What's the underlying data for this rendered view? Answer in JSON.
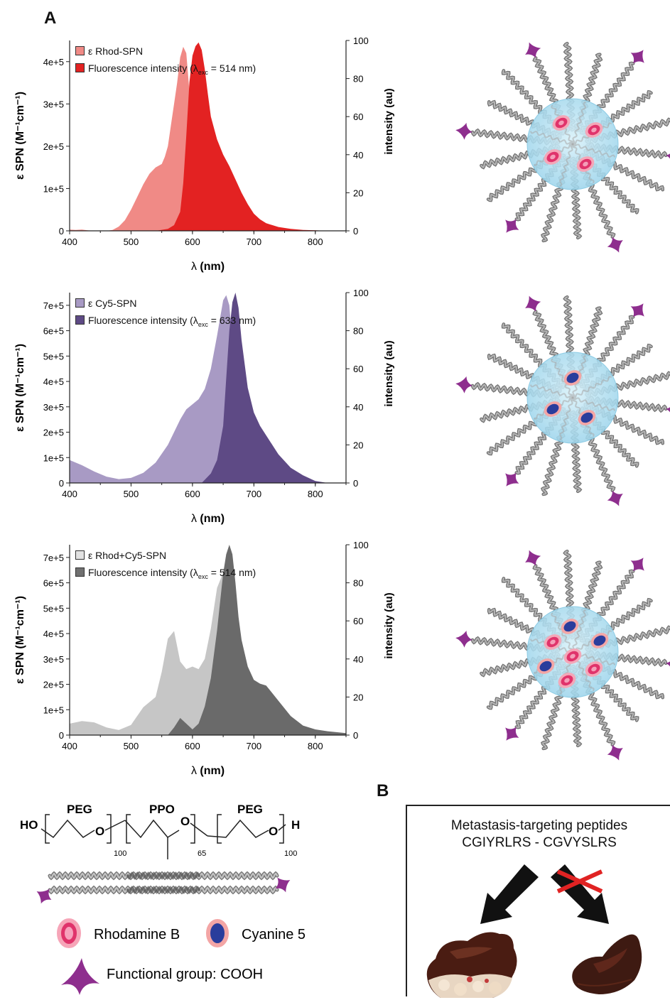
{
  "figure": {
    "panel_a_label": "A",
    "panel_b_label": "B"
  },
  "chart_data": [
    {
      "type": "area",
      "x_axis": {
        "label_symbol": "λ",
        "label_unit": "(nm)",
        "ticks": [
          "400",
          "500",
          "600",
          "700",
          "800"
        ],
        "range": [
          400,
          850
        ]
      },
      "y_left": {
        "label": "ε SPN (M⁻¹cm⁻¹)",
        "ticks": [
          "0",
          "1e+5",
          "2e+5",
          "3e+5",
          "4e+5"
        ],
        "range": [
          0,
          450000
        ]
      },
      "y_right": {
        "label": "intensity (au)",
        "ticks": [
          "0",
          "20",
          "40",
          "60",
          "80",
          "100"
        ],
        "range": [
          0,
          100
        ]
      },
      "legend": [
        {
          "text": "ε Rhod-SPN",
          "color": "#f08a86"
        },
        {
          "text": "Fluorescence intensity (λ",
          "sub": "exc",
          "tail": " = 514 nm)",
          "color": "#e32222"
        }
      ],
      "series": [
        {
          "name": "ε Rhod-SPN",
          "axis": "left",
          "color": "#f08a86",
          "x": [
            400,
            410,
            420,
            430,
            440,
            450,
            460,
            470,
            480,
            490,
            500,
            510,
            520,
            530,
            540,
            550,
            555,
            560,
            565,
            570,
            575,
            580,
            585,
            590,
            595,
            600,
            605,
            610,
            620,
            630
          ],
          "y": [
            3000,
            2000,
            3000,
            1000,
            0,
            0,
            0,
            2000,
            10000,
            25000,
            50000,
            80000,
            110000,
            135000,
            150000,
            158000,
            175000,
            200000,
            250000,
            300000,
            350000,
            410000,
            435000,
            420000,
            330000,
            200000,
            90000,
            30000,
            5000,
            0
          ]
        },
        {
          "name": "Fluorescence intensity (λexc = 514 nm)",
          "axis": "right",
          "color": "#e32222",
          "x": [
            540,
            560,
            570,
            580,
            585,
            590,
            595,
            600,
            605,
            610,
            615,
            620,
            625,
            630,
            640,
            650,
            660,
            670,
            680,
            690,
            700,
            710,
            720,
            740,
            760,
            780,
            800,
            820,
            850
          ],
          "y": [
            0,
            1,
            3,
            10,
            25,
            50,
            78,
            92,
            97,
            99,
            95,
            85,
            72,
            60,
            48,
            40,
            34,
            27,
            20,
            14,
            9,
            6,
            4,
            2,
            1,
            0.5,
            0.3,
            0,
            0
          ]
        }
      ]
    },
    {
      "type": "area",
      "x_axis": {
        "label_symbol": "λ",
        "label_unit": "(nm)",
        "ticks": [
          "400",
          "500",
          "600",
          "700",
          "800"
        ],
        "range": [
          400,
          850
        ]
      },
      "y_left": {
        "label": "ε SPN (M⁻¹cm⁻¹)",
        "ticks": [
          "0",
          "1e+5",
          "2e+5",
          "3e+5",
          "4e+5",
          "5e+5",
          "6e+5",
          "7e+5"
        ],
        "range": [
          0,
          750000
        ]
      },
      "y_right": {
        "label": "intensity (au)",
        "ticks": [
          "0",
          "20",
          "40",
          "60",
          "80",
          "100"
        ],
        "range": [
          0,
          100
        ]
      },
      "legend": [
        {
          "text": "ε Cy5-SPN",
          "color": "#a89ac4"
        },
        {
          "text": "Fluorescence intensity (λ",
          "sub": "exc",
          "tail": " = 633 nm)",
          "color": "#5e4a85"
        }
      ],
      "series": [
        {
          "name": "ε Cy5-SPN",
          "axis": "left",
          "color": "#a89ac4",
          "x": [
            400,
            420,
            440,
            460,
            480,
            500,
            520,
            540,
            560,
            580,
            590,
            600,
            610,
            620,
            630,
            640,
            650,
            655,
            660,
            665,
            670,
            680,
            690,
            700
          ],
          "y": [
            90000,
            70000,
            45000,
            25000,
            15000,
            20000,
            40000,
            80000,
            150000,
            250000,
            290000,
            310000,
            330000,
            370000,
            450000,
            580000,
            720000,
            740000,
            700000,
            550000,
            350000,
            100000,
            20000,
            0
          ]
        },
        {
          "name": "Fluorescence intensity (λexc = 633 nm)",
          "axis": "right",
          "color": "#5e4a85",
          "x": [
            615,
            630,
            640,
            650,
            655,
            660,
            665,
            670,
            675,
            680,
            690,
            700,
            710,
            720,
            740,
            760,
            780,
            800,
            820
          ],
          "y": [
            0,
            5,
            12,
            30,
            55,
            80,
            95,
            100,
            92,
            75,
            50,
            37,
            30,
            25,
            15,
            8,
            4,
            1,
            0
          ]
        }
      ]
    },
    {
      "type": "area",
      "x_axis": {
        "label_symbol": "λ",
        "label_unit": "(nm)",
        "ticks": [
          "400",
          "500",
          "600",
          "700",
          "800"
        ],
        "range": [
          400,
          850
        ]
      },
      "y_left": {
        "label": "ε SPN (M⁻¹cm⁻¹)",
        "ticks": [
          "0",
          "1e+5",
          "2e+5",
          "3e+5",
          "4e+5",
          "5e+5",
          "6e+5",
          "7e+5"
        ],
        "range": [
          0,
          750000
        ]
      },
      "y_right": {
        "label": "intensity (au)",
        "ticks": [
          "0",
          "20",
          "40",
          "60",
          "80",
          "100"
        ],
        "range": [
          0,
          100
        ]
      },
      "legend": [
        {
          "text": "ε Rhod+Cy5-SPN",
          "color": "#d2d2d2"
        },
        {
          "text": "Fluorescence intensity (λ",
          "sub": "exc",
          "tail": " = 514 nm)",
          "color": "#707070"
        }
      ],
      "series": [
        {
          "name": "ε Rhod+Cy5-SPN",
          "axis": "left",
          "color": "#c6c6c6",
          "x": [
            400,
            420,
            440,
            460,
            480,
            500,
            520,
            530,
            540,
            550,
            560,
            570,
            580,
            590,
            600,
            610,
            620,
            630,
            640,
            650,
            660,
            665,
            670,
            680,
            690
          ],
          "y": [
            45000,
            55000,
            50000,
            30000,
            20000,
            40000,
            110000,
            130000,
            150000,
            250000,
            380000,
            410000,
            290000,
            260000,
            270000,
            260000,
            300000,
            420000,
            580000,
            640000,
            600000,
            450000,
            300000,
            100000,
            0
          ]
        },
        {
          "name": "Fluorescence intensity (λexc = 514 nm)",
          "axis": "right",
          "color": "#6a6a6a",
          "x": [
            560,
            570,
            580,
            590,
            600,
            610,
            620,
            630,
            640,
            650,
            655,
            660,
            665,
            670,
            675,
            680,
            690,
            700,
            710,
            720,
            730,
            740,
            760,
            780,
            800,
            820,
            850
          ],
          "y": [
            0,
            4,
            9,
            6,
            3,
            6,
            15,
            30,
            55,
            85,
            95,
            100,
            95,
            80,
            62,
            50,
            36,
            29,
            27,
            26,
            22,
            18,
            10,
            5,
            3,
            2,
            1
          ]
        }
      ]
    }
  ],
  "polymer": {
    "ho": "HO",
    "h": "H",
    "o": "O",
    "seg1": {
      "name": "PEG",
      "n": "100"
    },
    "seg2": {
      "name": "PPO",
      "n": "65"
    },
    "seg3": {
      "name": "PEG",
      "n": "100"
    }
  },
  "legend_lower": {
    "rhodamine": "Rhodamine B",
    "cyanine": "Cyanine 5",
    "functional": "Functional group: COOH"
  },
  "panel_b": {
    "title_line1": "Metastasis-targeting peptides",
    "title_line2": "CGIYRLRS - CGVYSLRS"
  },
  "colors": {
    "rhodamine": "#e0336b",
    "cyanine": "#2a3d9c",
    "core": "#9fd6ec",
    "chain": "#8c8c8c",
    "cooh": "#8e2e8e",
    "cross": "#e02323"
  }
}
